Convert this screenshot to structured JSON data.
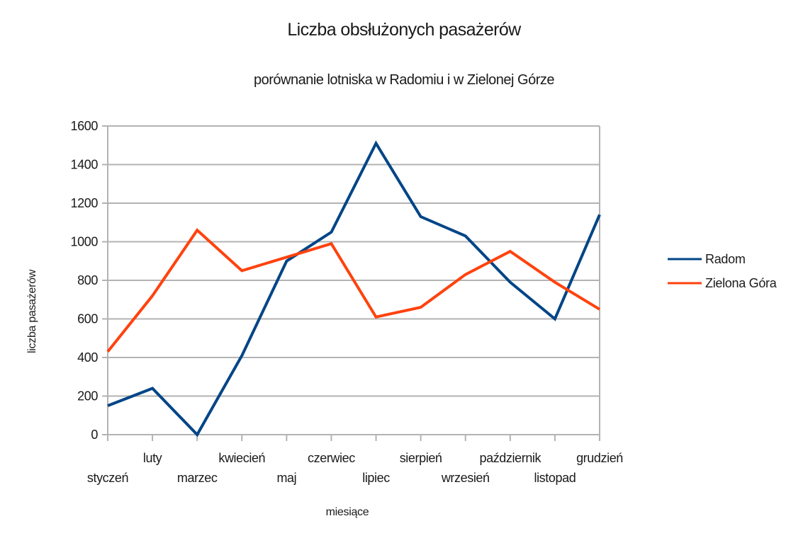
{
  "chart_data": {
    "type": "line",
    "title": "Liczba obsłużonych pasażerów",
    "subtitle": "porównanie lotniska w Radomiu i w Zielonej Górze",
    "xlabel": "miesiące",
    "ylabel": "liczba pasażerów",
    "categories": [
      "styczeń",
      "luty",
      "marzec",
      "kwiecień",
      "maj",
      "czerwiec",
      "lipiec",
      "sierpień",
      "wrzesień",
      "październik",
      "listopad",
      "grudzień"
    ],
    "series": [
      {
        "name": "Radom",
        "color": "#004586",
        "values": [
          150,
          240,
          0,
          410,
          900,
          1050,
          1510,
          1130,
          1030,
          790,
          600,
          1140
        ]
      },
      {
        "name": "Zielona Góra",
        "color": "#ff420e",
        "values": [
          430,
          720,
          1060,
          850,
          920,
          990,
          610,
          660,
          830,
          950,
          790,
          650
        ]
      }
    ],
    "ylim": [
      0,
      1600
    ],
    "yticks": [
      0,
      200,
      400,
      600,
      800,
      1000,
      1200,
      1400,
      1600
    ],
    "grid": true,
    "legend_position": "right"
  }
}
